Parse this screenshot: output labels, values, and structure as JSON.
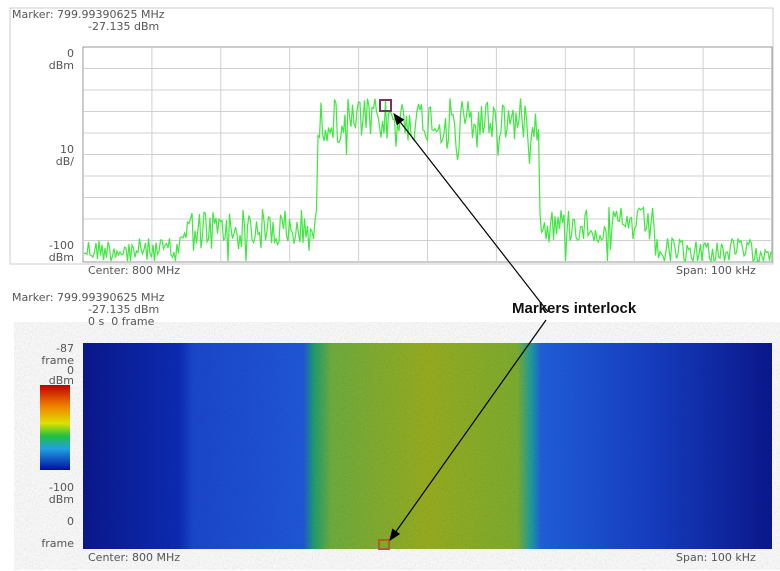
{
  "top_panel": {
    "marker_freq": "Marker: 799.99390625 MHz",
    "marker_level": "-27.135 dBm",
    "y_labels": [
      "0",
      "dBm",
      "10",
      "dB/",
      "-100",
      "dBm"
    ],
    "center": "Center: 800 MHz",
    "span": "Span: 100 kHz"
  },
  "bottom_panel": {
    "marker_freq": "Marker: 799.99390625 MHz",
    "marker_level": "-27.135 dBm",
    "time": "0 s  0 frame",
    "y_labels": [
      "-87",
      "frame",
      "0",
      "dBm",
      "-100",
      "dBm",
      "0",
      "frame"
    ],
    "center": "Center: 800 MHz",
    "span": "Span: 100 kHz"
  },
  "annotation": "Markers interlock"
}
